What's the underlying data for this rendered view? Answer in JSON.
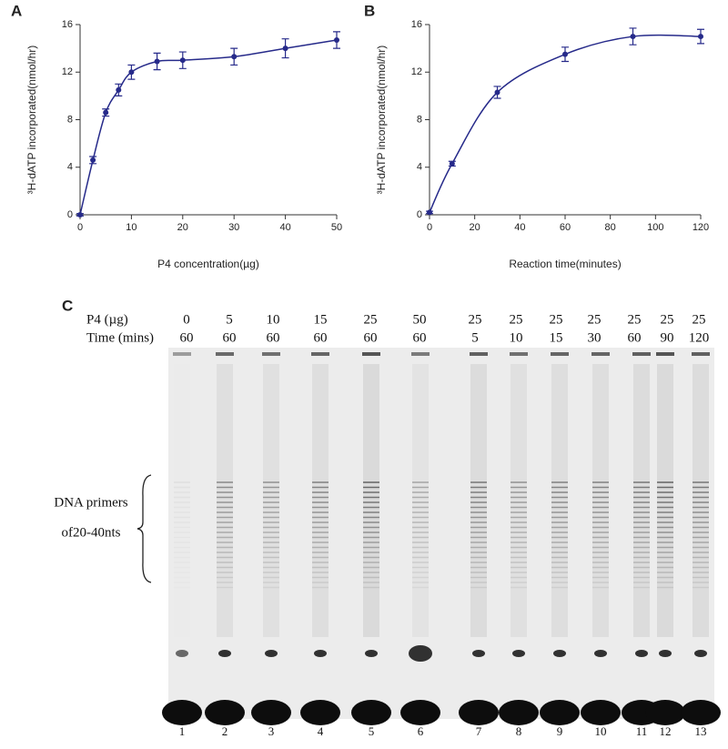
{
  "chart_data": [
    {
      "type": "line",
      "label": "A",
      "x_label": "P4 concentration(µg)",
      "y_label": "³H-dATP incorporated(nmol/hr)",
      "x": [
        0,
        2.5,
        5,
        7.5,
        10,
        15,
        20,
        30,
        40,
        50
      ],
      "series": [
        {
          "color": "#262a8a",
          "values": [
            0,
            4.6,
            8.6,
            10.5,
            12,
            12.9,
            13,
            13.3,
            14,
            14.7
          ],
          "errors": [
            0.1,
            0.3,
            0.3,
            0.5,
            0.6,
            0.7,
            0.7,
            0.7,
            0.8,
            0.7
          ]
        }
      ],
      "xlim": [
        0,
        50
      ],
      "xticks": [
        0,
        10,
        20,
        30,
        40,
        50
      ],
      "ylim": [
        0,
        16
      ],
      "yticks": [
        0,
        4,
        8,
        12,
        16
      ]
    },
    {
      "type": "line",
      "label": "B",
      "x_label": "Reaction time(minutes)",
      "y_label": "³H-dATP incorporated(nmol/hr)",
      "x": [
        0,
        10,
        30,
        60,
        90,
        120
      ],
      "series": [
        {
          "color": "#262a8a",
          "values": [
            0.2,
            4.3,
            10.3,
            13.5,
            15,
            15
          ],
          "errors": [
            0.1,
            0.2,
            0.5,
            0.6,
            0.7,
            0.6
          ]
        }
      ],
      "xlim": [
        0,
        120
      ],
      "xticks": [
        0,
        20,
        40,
        60,
        80,
        100,
        120
      ],
      "ylim": [
        0,
        16
      ],
      "yticks": [
        0,
        4,
        8,
        12,
        16
      ]
    }
  ],
  "gel": {
    "label": "C",
    "row_labels": [
      "P4 (µg)",
      "Time (mins)"
    ],
    "p4": [
      "0",
      "5",
      "10",
      "15",
      "25",
      "50",
      "25",
      "25",
      "25",
      "25",
      "25",
      "25",
      "25"
    ],
    "time": [
      "60",
      "60",
      "60",
      "60",
      "60",
      "60",
      "5",
      "10",
      "15",
      "30",
      "60",
      "90",
      "120"
    ],
    "lanes": [
      "1",
      "2",
      "3",
      "4",
      "5",
      "6",
      "7",
      "8",
      "9",
      "10",
      "11",
      "12",
      "13"
    ],
    "bracket_label": [
      "DNA primers",
      "of20-40nts"
    ]
  }
}
